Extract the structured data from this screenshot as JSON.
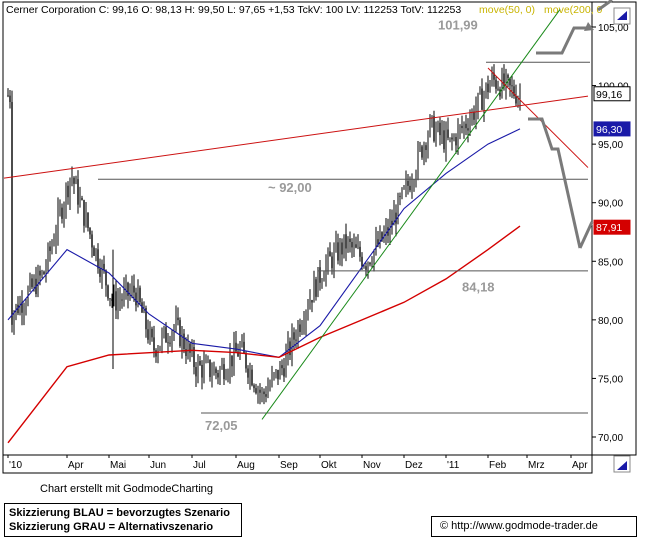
{
  "header": {
    "text": "Cerner Corporation C: 99,16 O: 98,13 H: 99,50 L: 97,65 +1,53 TckV: 100 LV: 112253 TotV: 112253",
    "ma50_label": "move(50, 0)",
    "ma200_label": "move(200, 0"
  },
  "colors": {
    "ma50": "#1a1aa8",
    "ma200": "#d40000",
    "trend_red": "#cc1111",
    "trend_green": "#1a8a1a",
    "scenario_gray": "#7a7a7a",
    "annotation": "#9a9a9a",
    "level_line": "#555555",
    "price": "#000000"
  },
  "chart_data": {
    "type": "candlestick",
    "title": "Cerner Corporation",
    "x_labels": [
      "'10",
      "Apr",
      "Mai",
      "Jun",
      "Jul",
      "Aug",
      "Sep",
      "Okt",
      "Nov",
      "Dez",
      "'11",
      "Feb",
      "Mrz",
      "Apr"
    ],
    "y_ticks": [
      "105,00",
      "100,00",
      "95,00",
      "90,00",
      "85,00",
      "80,00",
      "75,00",
      "70,00"
    ],
    "y_tick_values": [
      105,
      100,
      95,
      90,
      85,
      80,
      75,
      70
    ],
    "ylim": [
      68,
      107
    ],
    "price_anchors": [
      [
        "'10",
        80.5
      ],
      [
        "Mrz",
        84.0
      ],
      [
        "Apr",
        92.5
      ],
      [
        "Apr",
        86.5
      ],
      [
        "Mai",
        81.5
      ],
      [
        "Mai",
        82.5
      ],
      [
        "Jun",
        77.5
      ],
      [
        "Jun",
        79.5
      ],
      [
        "Jul",
        76.0
      ],
      [
        "Jul",
        75.5
      ],
      [
        "Aug",
        77.5
      ],
      [
        "Aug",
        73.5
      ],
      [
        "Sep",
        76.0
      ],
      [
        "Sep",
        81.0
      ],
      [
        "Okt",
        84.5
      ],
      [
        "Okt",
        86.5
      ],
      [
        "Nov",
        85.0
      ],
      [
        "Nov",
        87.5
      ],
      [
        "Dez",
        91.5
      ],
      [
        "Dez",
        96.5
      ],
      [
        "'11",
        95.0
      ],
      [
        "'11",
        97.5
      ],
      [
        "Feb",
        100.5
      ],
      [
        "Mrz",
        99.16
      ]
    ],
    "moving_averages": [
      {
        "name": "move(50, 0)",
        "points": [
          [
            "'10",
            80.0
          ],
          [
            "Apr",
            86.0
          ],
          [
            "Mai",
            84.0
          ],
          [
            "Jun",
            80.5
          ],
          [
            "Jul",
            78.0
          ],
          [
            "Aug",
            77.5
          ],
          [
            "Sep",
            76.8
          ],
          [
            "Okt",
            79.5
          ],
          [
            "Nov",
            84.5
          ],
          [
            "Dez",
            89.5
          ],
          [
            "'11",
            92.5
          ],
          [
            "Feb",
            95.0
          ],
          [
            "Mrz",
            96.3
          ]
        ],
        "last_value": "96,30"
      },
      {
        "name": "move(200, 0",
        "points": [
          [
            "'10",
            69.5
          ],
          [
            "Apr",
            76.0
          ],
          [
            "Mai",
            77.0
          ],
          [
            "Jul",
            77.4
          ],
          [
            "Aug",
            77.2
          ],
          [
            "Sep",
            76.8
          ],
          [
            "Okt",
            78.5
          ],
          [
            "Nov",
            80.0
          ],
          [
            "Dez",
            81.5
          ],
          [
            "'11",
            83.5
          ],
          [
            "Feb",
            86.0
          ],
          [
            "Mrz",
            88.0
          ]
        ],
        "last_value": "87,91"
      }
    ],
    "last_price": "99,16",
    "levels": [
      {
        "label": "101,99",
        "value": 101.99
      },
      {
        "label": "~ 92,00",
        "value": 92.0
      },
      {
        "label": "84,18",
        "value": 84.18
      },
      {
        "label": "72,05",
        "value": 72.05
      }
    ],
    "trendlines": [
      {
        "name": "red-long-trendline",
        "from": [
          "'10",
          92.1
        ],
        "to": [
          "Apr",
          99.1
        ]
      },
      {
        "name": "green-support-trendline",
        "from": [
          "Aug",
          71.5
        ],
        "to": [
          "Mrz",
          106.5
        ]
      },
      {
        "name": "red-resistance-trendline",
        "from": [
          "Feb",
          101.5
        ],
        "to": [
          "Apr",
          93.0
        ]
      }
    ],
    "scenarios": {
      "blue_preferred": "Skizzierung BLAU = bevorzugtes Szenario",
      "gray_alternative": "Skizzierung GRAU = Alternativszenario"
    }
  },
  "footer": {
    "credit": "Chart erstellt mit GodmodeCharting",
    "legend_blue": "Skizzierung BLAU = bevorzugtes Szenario",
    "legend_gray": "Skizzierung GRAU = Alternativszenario",
    "url": "© http://www.godmode-trader.de"
  }
}
